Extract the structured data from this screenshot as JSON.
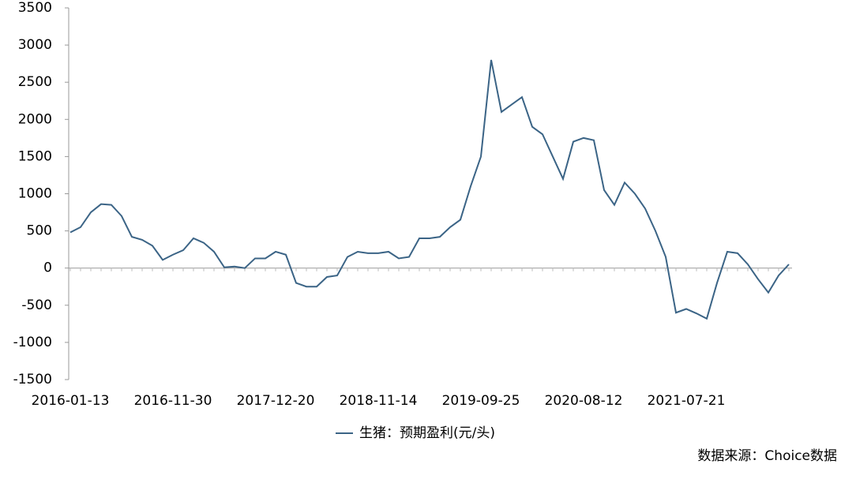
{
  "chart_data": {
    "type": "line",
    "categories": [
      "2016-01-13",
      null,
      null,
      null,
      null,
      null,
      null,
      null,
      null,
      null,
      "2016-11-30",
      null,
      null,
      null,
      null,
      null,
      null,
      null,
      null,
      null,
      "2017-12-20",
      null,
      null,
      null,
      null,
      null,
      null,
      null,
      null,
      null,
      "2018-11-14",
      null,
      null,
      null,
      null,
      null,
      null,
      null,
      null,
      null,
      "2019-09-25",
      null,
      null,
      null,
      null,
      null,
      null,
      null,
      null,
      null,
      "2020-08-12",
      null,
      null,
      null,
      null,
      null,
      null,
      null,
      null,
      null,
      "2021-07-21",
      null,
      null,
      null,
      null,
      null,
      null,
      null,
      null,
      null,
      null
    ],
    "series": [
      {
        "name": "生猪：预期盈利(元/头)",
        "color": "#3b6486",
        "values": [
          480,
          550,
          750,
          860,
          850,
          700,
          420,
          380,
          300,
          110,
          180,
          240,
          400,
          340,
          220,
          10,
          20,
          0,
          130,
          130,
          220,
          180,
          -200,
          -250,
          -250,
          -120,
          -100,
          150,
          220,
          200,
          200,
          220,
          130,
          150,
          400,
          400,
          420,
          550,
          650,
          1100,
          1500,
          2800,
          2100,
          2200,
          2300,
          1900,
          1800,
          1500,
          1200,
          1700,
          1750,
          1720,
          1050,
          850,
          1150,
          1000,
          800,
          500,
          150,
          -600,
          -550,
          -610,
          -680,
          -200,
          220,
          200,
          50,
          -150,
          -330,
          -100,
          50
        ]
      }
    ],
    "ylim": [
      -1500,
      3500
    ],
    "yticks": [
      -1500,
      -1000,
      -500,
      0,
      500,
      1000,
      1500,
      2000,
      2500,
      3000,
      3500
    ],
    "legend": "bottom",
    "source": "数据来源：Choice数据"
  }
}
